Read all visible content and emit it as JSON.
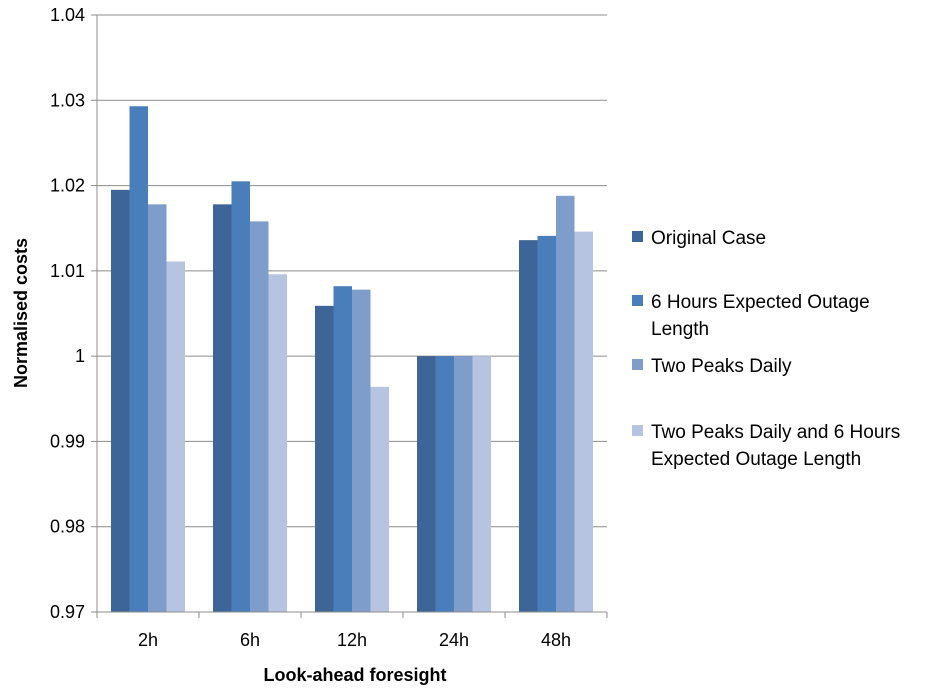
{
  "chart_data": {
    "type": "bar",
    "title": "",
    "xlabel": "Look-ahead foresight",
    "ylabel": "Normalised costs",
    "categories": [
      "2h",
      "6h",
      "12h",
      "24h",
      "48h"
    ],
    "series": [
      {
        "name": "Original Case",
        "color": "#3E6597",
        "values": [
          1.0195,
          1.0178,
          1.0059,
          1.0,
          1.0136
        ]
      },
      {
        "name": "6 Hours Expected Outage Length",
        "color": "#4A7EBB",
        "values": [
          1.0293,
          1.0205,
          1.0082,
          1.0,
          1.0141
        ]
      },
      {
        "name": "Two Peaks Daily",
        "color": "#7E9DCB",
        "values": [
          1.0178,
          1.0158,
          1.0078,
          1.0,
          1.0188
        ]
      },
      {
        "name": "Two Peaks Daily and 6 Hours Expected Outage Length",
        "color": "#B7C4E1",
        "values": [
          1.0111,
          1.0096,
          0.9964,
          1.0,
          1.0146
        ]
      }
    ],
    "ylim": [
      0.97,
      1.04
    ],
    "yticks": [
      "0.97",
      "0.98",
      "0.99",
      "1",
      "1.01",
      "1.02",
      "1.03",
      "1.04"
    ],
    "grid": true,
    "legend_position": "right"
  }
}
